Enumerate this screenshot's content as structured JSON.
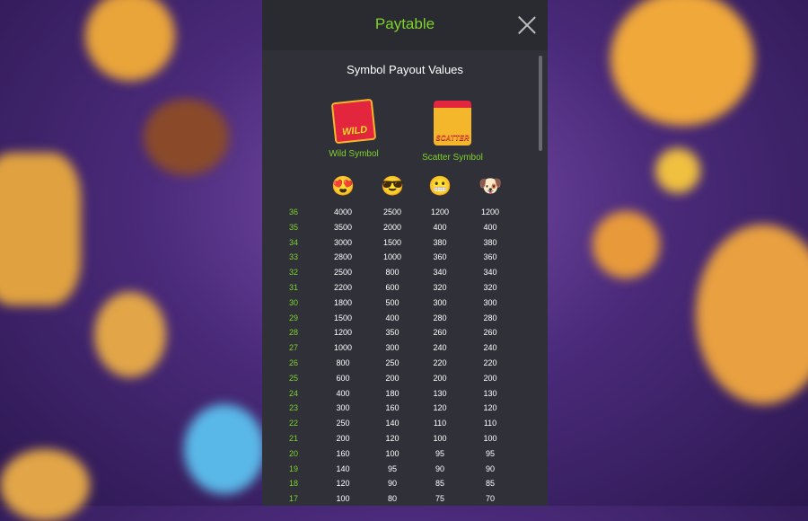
{
  "header": {
    "title": "Paytable"
  },
  "section_title": "Symbol Payout Values",
  "special_symbols": [
    {
      "label": "Wild Symbol",
      "badge": "WILD"
    },
    {
      "label": "Scatter Symbol",
      "badge": "SCATTER"
    }
  ],
  "symbols": [
    {
      "icon": "heart-eyes-emoji",
      "glyph": "😍"
    },
    {
      "icon": "sunglasses-emoji",
      "glyph": "😎"
    },
    {
      "icon": "grimacing-emoji",
      "glyph": "😬"
    },
    {
      "icon": "dog-emoji",
      "glyph": "🐶"
    }
  ],
  "rows": [
    [
      "36",
      "4000",
      "2500",
      "1200",
      "1200"
    ],
    [
      "35",
      "3500",
      "2000",
      "400",
      "400"
    ],
    [
      "34",
      "3000",
      "1500",
      "380",
      "380"
    ],
    [
      "33",
      "2800",
      "1000",
      "360",
      "360"
    ],
    [
      "32",
      "2500",
      "800",
      "340",
      "340"
    ],
    [
      "31",
      "2200",
      "600",
      "320",
      "320"
    ],
    [
      "30",
      "1800",
      "500",
      "300",
      "300"
    ],
    [
      "29",
      "1500",
      "400",
      "280",
      "280"
    ],
    [
      "28",
      "1200",
      "350",
      "260",
      "260"
    ],
    [
      "27",
      "1000",
      "300",
      "240",
      "240"
    ],
    [
      "26",
      "800",
      "250",
      "220",
      "220"
    ],
    [
      "25",
      "600",
      "200",
      "200",
      "200"
    ],
    [
      "24",
      "400",
      "180",
      "130",
      "130"
    ],
    [
      "23",
      "300",
      "160",
      "120",
      "120"
    ],
    [
      "22",
      "250",
      "140",
      "110",
      "110"
    ],
    [
      "21",
      "200",
      "120",
      "100",
      "100"
    ],
    [
      "20",
      "160",
      "100",
      "95",
      "95"
    ],
    [
      "19",
      "140",
      "95",
      "90",
      "90"
    ],
    [
      "18",
      "120",
      "90",
      "85",
      "85"
    ],
    [
      "17",
      "100",
      "80",
      "75",
      "70"
    ]
  ],
  "colors": {
    "accent": "#7ed22c",
    "panel": "#2f3038",
    "header": "#2a2b30"
  }
}
